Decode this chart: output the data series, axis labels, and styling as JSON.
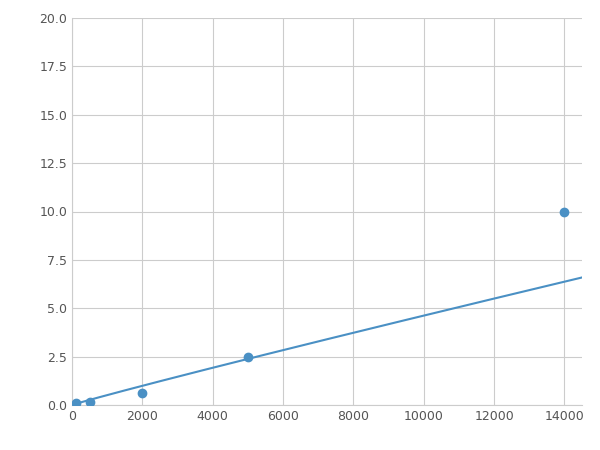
{
  "x_points": [
    100,
    500,
    2000,
    5000,
    14000
  ],
  "y_points": [
    0.1,
    0.15,
    0.6,
    2.5,
    10.0
  ],
  "line_color": "#4a90c4",
  "marker_color": "#4a90c4",
  "marker_size": 6,
  "xlim": [
    0,
    14500
  ],
  "ylim": [
    0,
    20.0
  ],
  "xticks": [
    0,
    2000,
    4000,
    6000,
    8000,
    10000,
    12000,
    14000
  ],
  "yticks": [
    0.0,
    2.5,
    5.0,
    7.5,
    10.0,
    12.5,
    15.0,
    17.5,
    20.0
  ],
  "grid_color": "#cccccc",
  "background_color": "#ffffff",
  "figsize": [
    6.0,
    4.5
  ],
  "dpi": 100
}
